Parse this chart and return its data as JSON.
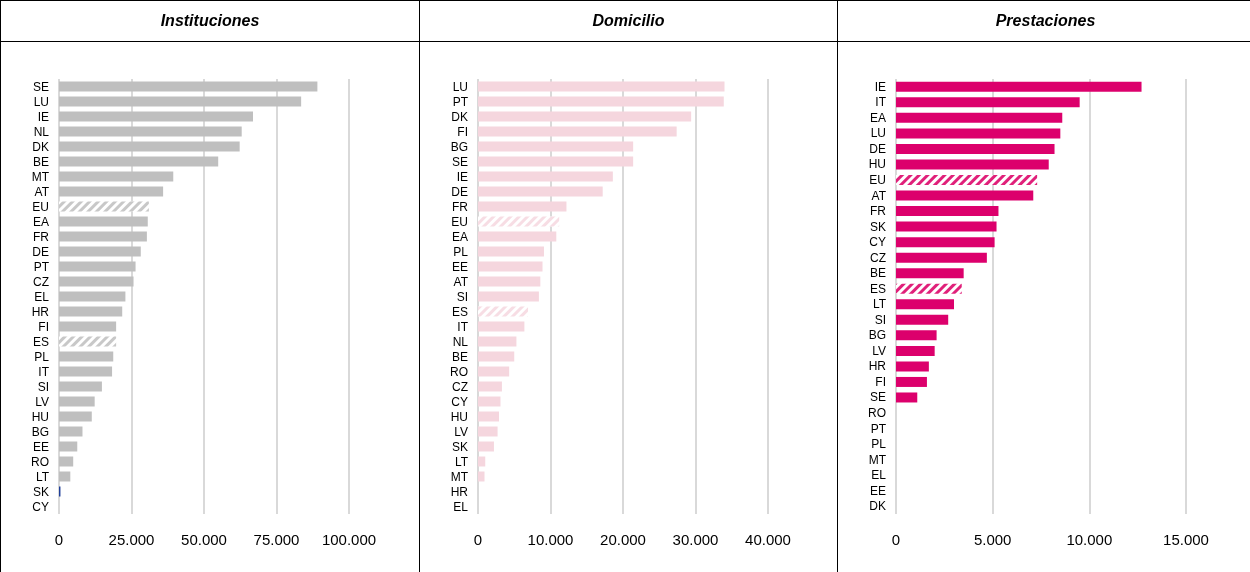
{
  "chart_data": [
    {
      "type": "bar",
      "orientation": "horizontal",
      "title": "Instituciones",
      "categories": [
        "SE",
        "LU",
        "IE",
        "NL",
        "DK",
        "BE",
        "MT",
        "AT",
        "EU",
        "EA",
        "FR",
        "DE",
        "PT",
        "CZ",
        "EL",
        "HR",
        "FI",
        "ES",
        "PL",
        "IT",
        "SI",
        "LV",
        "HU",
        "BG",
        "EE",
        "RO",
        "LT",
        "SK",
        "CY"
      ],
      "series": [
        {
          "color": "#bfbfbf",
          "colors": [
            "#bfbfbf",
            "#bfbfbf",
            "#bfbfbf",
            "#bfbfbf",
            "#bfbfbf",
            "#bfbfbf",
            "#bfbfbf",
            "#bfbfbf",
            "#c8c8c8",
            "#bfbfbf",
            "#bfbfbf",
            "#bfbfbf",
            "#bfbfbf",
            "#bfbfbf",
            "#bfbfbf",
            "#bfbfbf",
            "#bfbfbf",
            "#c8c8c8",
            "#bfbfbf",
            "#bfbfbf",
            "#bfbfbf",
            "#bfbfbf",
            "#bfbfbf",
            "#bfbfbf",
            "#bfbfbf",
            "#bfbfbf",
            "#bfbfbf",
            "#1f3f99",
            "#bfbfbf"
          ],
          "values": [
            89100,
            83500,
            66900,
            63000,
            62300,
            54900,
            39400,
            35900,
            31000,
            30600,
            30300,
            28200,
            26400,
            25700,
            22900,
            21800,
            19700,
            19700,
            18700,
            18300,
            14800,
            12300,
            11300,
            8100,
            6300,
            4900,
            3900,
            500,
            0
          ]
        }
      ],
      "xlim": [
        0,
        100000
      ],
      "xticks": [
        {
          "value": 0,
          "label": "0"
        },
        {
          "value": 25000,
          "label": "25.000"
        },
        {
          "value": 50000,
          "label": "50.000"
        },
        {
          "value": 75000,
          "label": "75.000"
        },
        {
          "value": 100000,
          "label": "100.000"
        }
      ],
      "grid": "x"
    },
    {
      "type": "bar",
      "orientation": "horizontal",
      "title": "Domicilio",
      "categories": [
        "LU",
        "PT",
        "DK",
        "FI",
        "BG",
        "SE",
        "IE",
        "DE",
        "FR",
        "EU",
        "EA",
        "PL",
        "EE",
        "AT",
        "SI",
        "ES",
        "IT",
        "NL",
        "BE",
        "RO",
        "CZ",
        "CY",
        "HU",
        "LV",
        "SK",
        "LT",
        "MT",
        "HR",
        "EL"
      ],
      "series": [
        {
          "color": "#f5d6de",
          "colors": [
            "#f5d6de",
            "#f5d6de",
            "#f5d6de",
            "#f5d6de",
            "#f5d6de",
            "#f5d6de",
            "#f5d6de",
            "#f5d6de",
            "#f5d6de",
            "#f7dde4",
            "#f5d6de",
            "#f5d6de",
            "#f5d6de",
            "#f5d6de",
            "#f5d6de",
            "#f7dde4",
            "#f5d6de",
            "#f5d6de",
            "#f5d6de",
            "#f5d6de",
            "#f5d6de",
            "#f5d6de",
            "#f5d6de",
            "#f5d6de",
            "#f5d6de",
            "#f5d6de",
            "#f5d6de",
            "#f5d6de",
            "#f5d6de"
          ],
          "values": [
            34000,
            33900,
            29400,
            27400,
            21400,
            21400,
            18600,
            17200,
            12200,
            11200,
            10800,
            9100,
            8900,
            8600,
            8400,
            6900,
            6400,
            5300,
            5000,
            4300,
            3300,
            3100,
            2900,
            2700,
            2200,
            1000,
            900,
            0,
            0
          ]
        }
      ],
      "xlim": [
        0,
        40000
      ],
      "xticks": [
        {
          "value": 0,
          "label": "0"
        },
        {
          "value": 10000,
          "label": "10.000"
        },
        {
          "value": 20000,
          "label": "20.000"
        },
        {
          "value": 30000,
          "label": "30.000"
        },
        {
          "value": 40000,
          "label": "40.000"
        }
      ],
      "grid": "x"
    },
    {
      "type": "bar",
      "orientation": "horizontal",
      "title": "Prestaciones",
      "categories": [
        "IE",
        "IT",
        "EA",
        "LU",
        "DE",
        "HU",
        "EU",
        "AT",
        "FR",
        "SK",
        "CY",
        "CZ",
        "BE",
        "ES",
        "LT",
        "SI",
        "BG",
        "LV",
        "HR",
        "FI",
        "SE",
        "RO",
        "PT",
        "PL",
        "MT",
        "EL",
        "EE",
        "DK"
      ],
      "series": [
        {
          "color": "#dc006c",
          "colors": [
            "#dc006c",
            "#dc006c",
            "#dc006c",
            "#dc006c",
            "#dc006c",
            "#dc006c",
            "#e0207a",
            "#dc006c",
            "#dc006c",
            "#dc006c",
            "#dc006c",
            "#dc006c",
            "#dc006c",
            "#e0207a",
            "#dc006c",
            "#dc006c",
            "#dc006c",
            "#dc006c",
            "#dc006c",
            "#dc006c",
            "#dc006c",
            "#dc006c",
            "#dc006c",
            "#dc006c",
            "#dc006c",
            "#dc006c",
            "#dc006c",
            "#dc006c"
          ],
          "values": [
            12700,
            9500,
            8600,
            8500,
            8200,
            7900,
            7300,
            7100,
            5300,
            5200,
            5100,
            4700,
            3500,
            3400,
            3000,
            2700,
            2100,
            2000,
            1700,
            1600,
            1100,
            0,
            0,
            0,
            0,
            0,
            0,
            0
          ]
        }
      ],
      "xlim": [
        0,
        15000
      ],
      "xticks": [
        {
          "value": 0,
          "label": "0"
        },
        {
          "value": 5000,
          "label": "5.000"
        },
        {
          "value": 10000,
          "label": "10.000"
        },
        {
          "value": 15000,
          "label": "15.000"
        }
      ],
      "grid": "x"
    }
  ]
}
